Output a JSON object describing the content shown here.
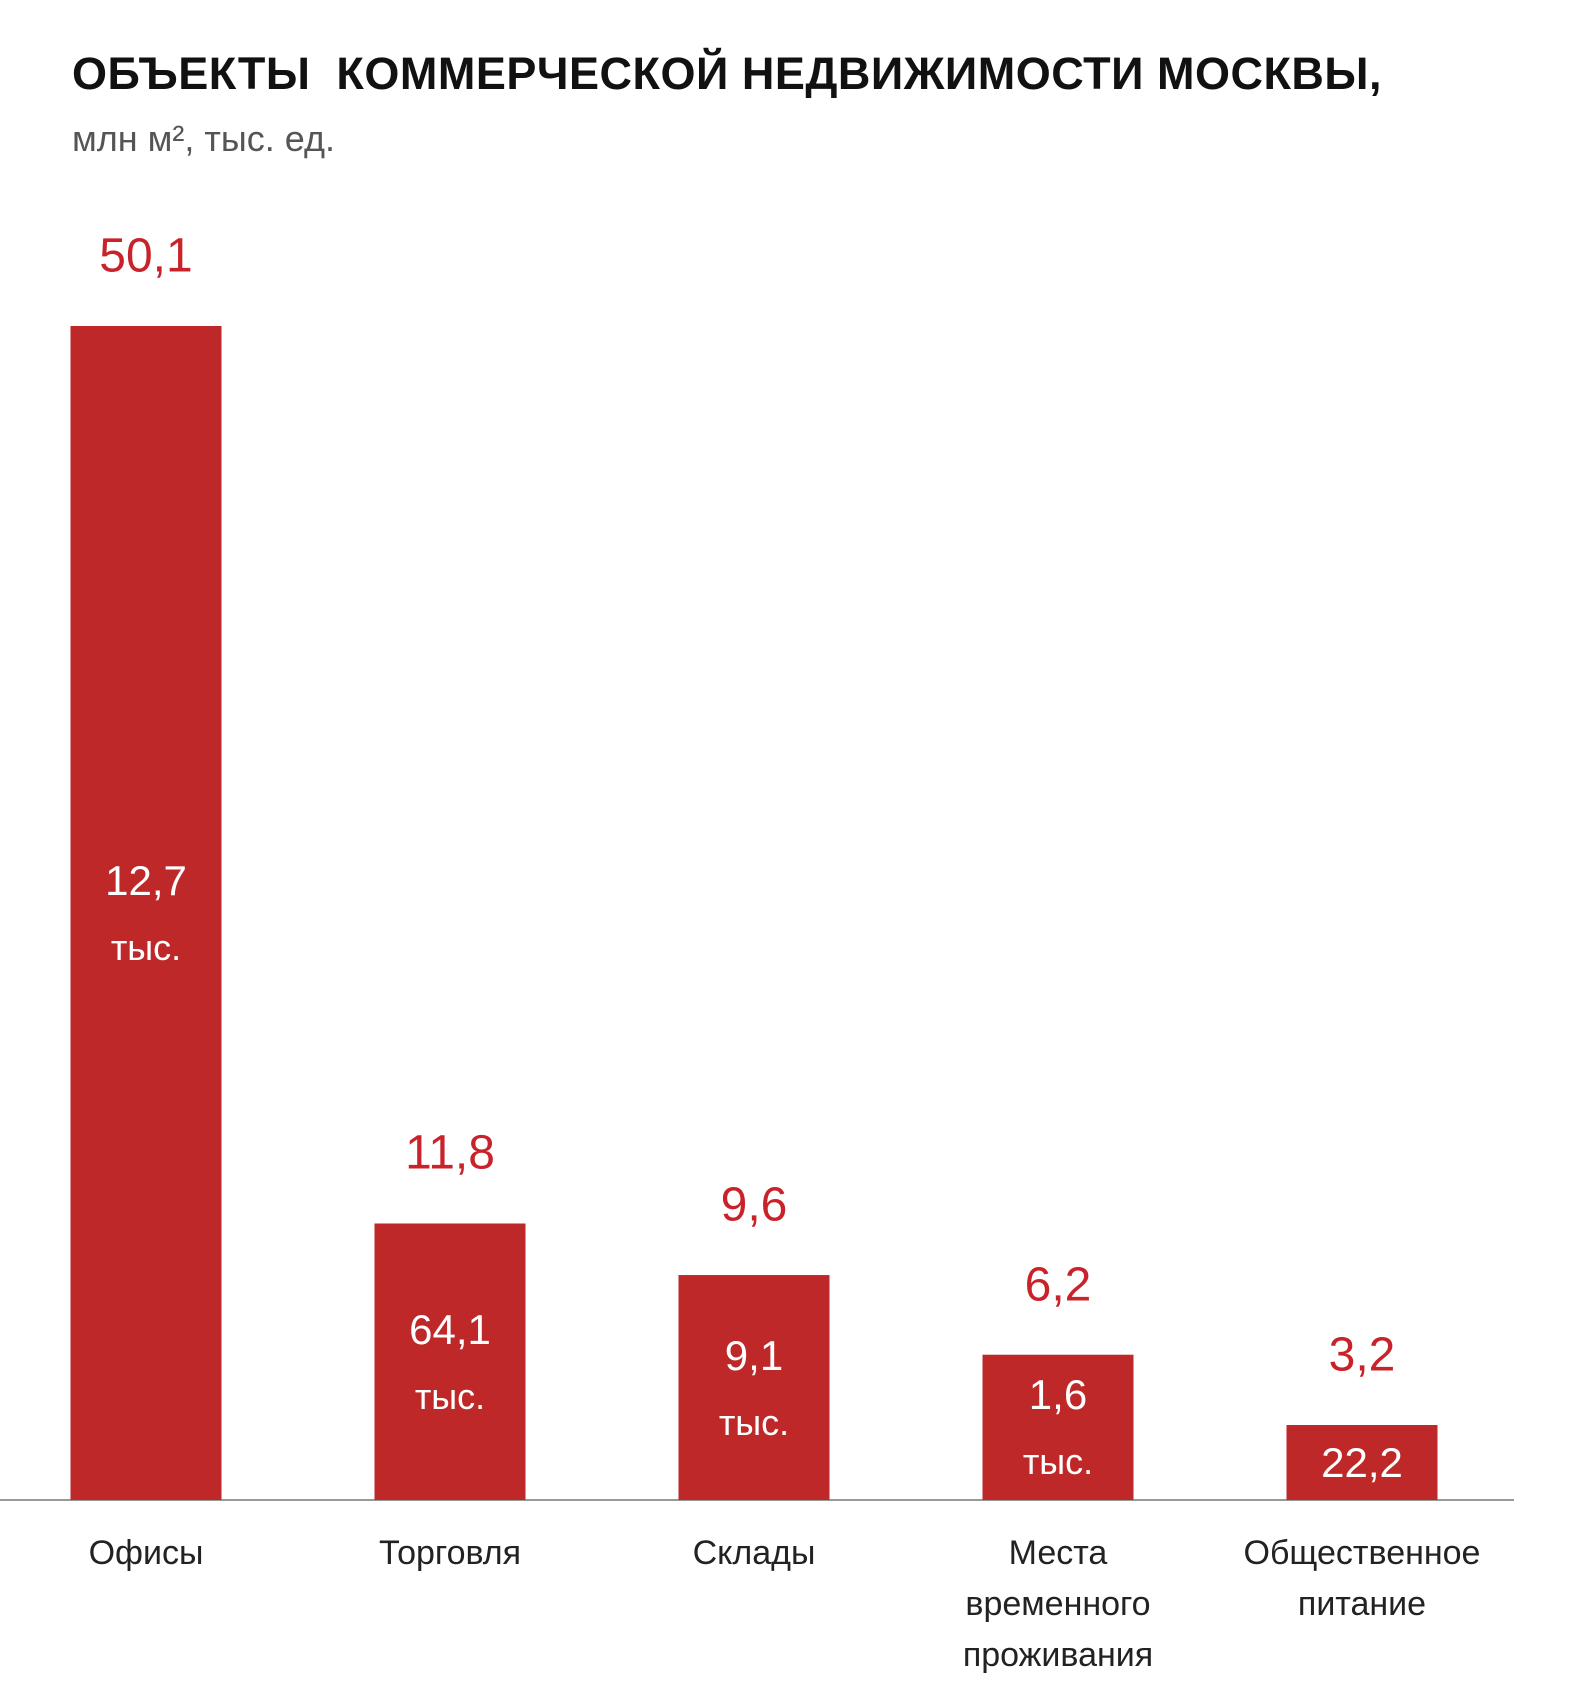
{
  "chart_data": {
    "type": "bar",
    "title": "ОБЪЕКТЫ  КОММЕРЧЕСКОЙ НЕДВИЖИМОСТИ МОСКВЫ,",
    "subtitle": "млн м², тыс. ед.",
    "categories": [
      "Офисы",
      "Торговля",
      "Склады",
      "Места временного проживания",
      "Общественное питание"
    ],
    "values": [
      50.1,
      11.8,
      9.6,
      6.2,
      3.2
    ],
    "value_labels": [
      "50,1",
      "11,8",
      "9,6",
      "6,2",
      "3,2"
    ],
    "inner_labels": [
      "12,7",
      "64,1",
      "9,1",
      "1,6",
      "22,2"
    ],
    "inner_units": [
      "тыс.",
      "тыс.",
      "тыс.",
      "тыс.",
      null
    ],
    "color": "#bf2828",
    "label_color": "#c8232a"
  }
}
